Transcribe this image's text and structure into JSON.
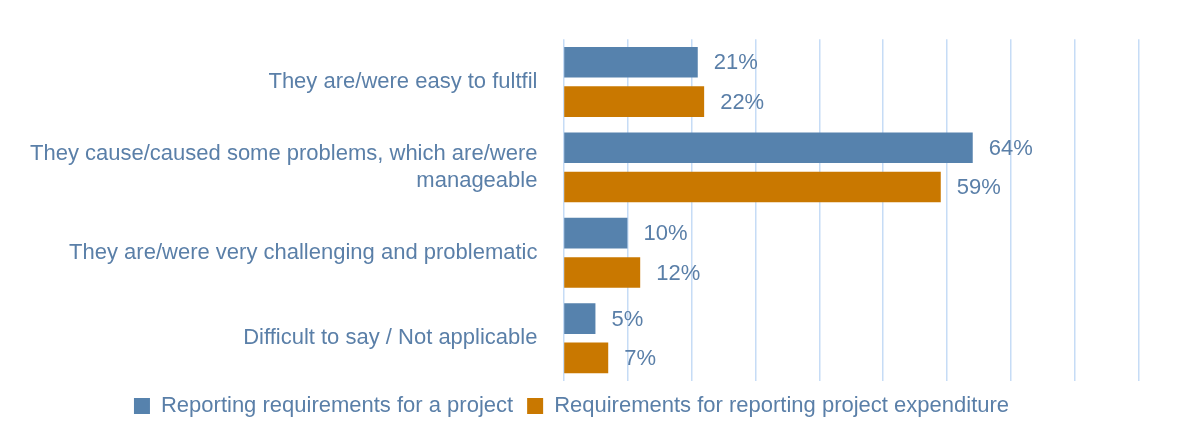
{
  "chart_data": {
    "type": "bar",
    "orientation": "horizontal",
    "categories": [
      "They are/were easy to fultfil",
      "They cause/caused some problems, which are/were manageable",
      "They are/were very challenging and problematic",
      "Difficult to say / Not applicable"
    ],
    "series": [
      {
        "name": "Reporting requirements for a project",
        "color": "#5682ad",
        "values": [
          21,
          64,
          10,
          5
        ],
        "value_labels": [
          "21%",
          "64%",
          "10%",
          "5%"
        ]
      },
      {
        "name": "Requirements for reporting project expenditure",
        "color": "#c97800",
        "values": [
          22,
          59,
          12,
          7
        ],
        "value_labels": [
          "22%",
          "59%",
          "12%",
          "7%"
        ]
      }
    ],
    "xlim": [
      0,
      90
    ],
    "xticks": [
      {
        "value": 0,
        "label": null
      },
      {
        "value": 10,
        "label": null
      },
      {
        "value": 20,
        "label": null
      },
      {
        "value": 30,
        "label": null
      },
      {
        "value": 40,
        "label": null
      },
      {
        "value": 50,
        "label": null
      },
      {
        "value": 60,
        "label": null
      },
      {
        "value": 70,
        "label": null
      },
      {
        "value": 80,
        "label": null
      },
      {
        "value": 90,
        "label": null
      }
    ],
    "tick_labels": "y",
    "grid": "x",
    "legend": "bottom"
  }
}
